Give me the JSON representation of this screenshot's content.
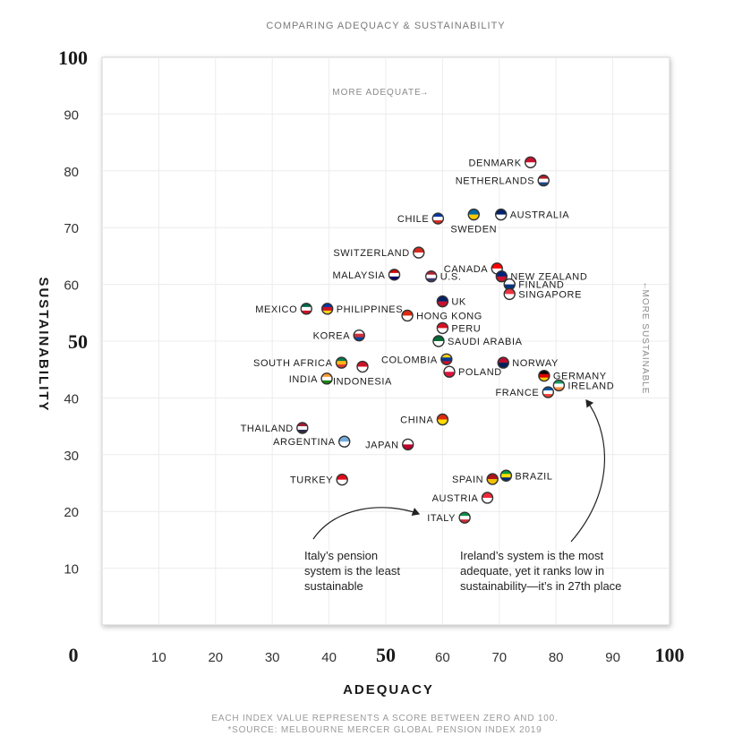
{
  "chart_data": {
    "type": "scatter",
    "title": "COMPARING ADEQUACY & SUSTAINABILITY",
    "xlabel": "ADEQUACY",
    "ylabel": "SUSTAINABILITY",
    "xlim": [
      0,
      100
    ],
    "ylim": [
      0,
      100
    ],
    "x_ticks": [
      "0",
      "10",
      "20",
      "30",
      "40",
      "50",
      "60",
      "70",
      "80",
      "90",
      "100"
    ],
    "y_ticks": [
      "0",
      "10",
      "20",
      "30",
      "40",
      "50",
      "60",
      "70",
      "80",
      "90",
      "100"
    ],
    "grid": true,
    "hint_x": "MORE ADEQUATE",
    "hint_y": "MORE SUSTAINABLE",
    "points": [
      {
        "label": "DENMARK",
        "x": 75.5,
        "y": 81.5,
        "flag": [
          "#c8102e",
          "#ffffff"
        ]
      },
      {
        "label": "NETHERLANDS",
        "x": 77.8,
        "y": 78.3,
        "flag": [
          "#ae1c28",
          "#ffffff",
          "#21468b"
        ]
      },
      {
        "label": "CHILE",
        "x": 59.2,
        "y": 71.6,
        "flag": [
          "#0039a6",
          "#ffffff",
          "#d52b1e"
        ]
      },
      {
        "label": "SWEDEN",
        "x": 65.5,
        "y": 72.3,
        "flag": [
          "#006aa7",
          "#fecc00"
        ]
      },
      {
        "label": "AUSTRALIA",
        "x": 70.3,
        "y": 72.3,
        "flag": [
          "#012169",
          "#ffffff"
        ]
      },
      {
        "label": "SWITZERLAND",
        "x": 55.8,
        "y": 65.6,
        "flag": [
          "#d52b1e",
          "#ffffff"
        ]
      },
      {
        "label": "MALAYSIA",
        "x": 51.5,
        "y": 61.7,
        "flag": [
          "#cc0001",
          "#ffffff",
          "#010066"
        ]
      },
      {
        "label": "U.S.",
        "x": 58.0,
        "y": 61.4,
        "flag": [
          "#b22234",
          "#ffffff",
          "#3c3b6e"
        ]
      },
      {
        "label": "CANADA",
        "x": 69.6,
        "y": 62.8,
        "flag": [
          "#ff0000",
          "#ffffff"
        ]
      },
      {
        "label": "NEW ZEALAND",
        "x": 70.4,
        "y": 61.4,
        "flag": [
          "#00247d",
          "#cc142b"
        ]
      },
      {
        "label": "FINLAND",
        "x": 71.8,
        "y": 60.0,
        "flag": [
          "#ffffff",
          "#003580"
        ]
      },
      {
        "label": "SINGAPORE",
        "x": 71.8,
        "y": 58.3,
        "flag": [
          "#ef3340",
          "#ffffff"
        ]
      },
      {
        "label": "UK",
        "x": 60.0,
        "y": 57.0,
        "flag": [
          "#012169",
          "#c8102e"
        ]
      },
      {
        "label": "MEXICO",
        "x": 36.0,
        "y": 55.7,
        "flag": [
          "#006847",
          "#ffffff",
          "#ce1126"
        ]
      },
      {
        "label": "PHILIPPINES",
        "x": 39.7,
        "y": 55.7,
        "flag": [
          "#0038a8",
          "#ce1126",
          "#fcd116"
        ]
      },
      {
        "label": "HONG KONG",
        "x": 53.8,
        "y": 54.5,
        "flag": [
          "#de2910",
          "#ffffff"
        ]
      },
      {
        "label": "PERU",
        "x": 60.0,
        "y": 52.3,
        "flag": [
          "#d91023",
          "#ffffff"
        ]
      },
      {
        "label": "KOREA",
        "x": 45.3,
        "y": 51.0,
        "flag": [
          "#ffffff",
          "#cd2e3a",
          "#0047a0"
        ]
      },
      {
        "label": "SAUDI ARABIA",
        "x": 59.3,
        "y": 50.0,
        "flag": [
          "#006c35",
          "#ffffff"
        ]
      },
      {
        "label": "COLOMBIA",
        "x": 60.7,
        "y": 46.8,
        "flag": [
          "#fcd116",
          "#003893",
          "#ce1126"
        ]
      },
      {
        "label": "NORWAY",
        "x": 70.7,
        "y": 46.2,
        "flag": [
          "#ba0c2f",
          "#00205b"
        ]
      },
      {
        "label": "SOUTH AFRICA",
        "x": 42.2,
        "y": 46.2,
        "flag": [
          "#007a4d",
          "#ffb612",
          "#de3831"
        ]
      },
      {
        "label": "INDONESIA",
        "x": 45.9,
        "y": 45.5,
        "flag": [
          "#ce1126",
          "#ffffff"
        ]
      },
      {
        "label": "POLAND",
        "x": 61.2,
        "y": 44.6,
        "flag": [
          "#ffffff",
          "#dc143c"
        ]
      },
      {
        "label": "GERMANY",
        "x": 77.9,
        "y": 43.9,
        "flag": [
          "#000000",
          "#dd0000",
          "#ffce00"
        ]
      },
      {
        "label": "INDIA",
        "x": 39.6,
        "y": 43.4,
        "flag": [
          "#ff9933",
          "#ffffff",
          "#138808"
        ]
      },
      {
        "label": "IRELAND",
        "x": 80.5,
        "y": 42.2,
        "flag": [
          "#169b62",
          "#ffffff",
          "#ff883e"
        ]
      },
      {
        "label": "FRANCE",
        "x": 78.6,
        "y": 41.0,
        "flag": [
          "#0055a4",
          "#ffffff",
          "#ef4135"
        ]
      },
      {
        "label": "CHINA",
        "x": 60.0,
        "y": 36.2,
        "flag": [
          "#de2910",
          "#ffde00"
        ]
      },
      {
        "label": "THAILAND",
        "x": 35.3,
        "y": 34.7,
        "flag": [
          "#a51931",
          "#f4f5f8",
          "#2d2a4a"
        ]
      },
      {
        "label": "ARGENTINA",
        "x": 42.7,
        "y": 32.3,
        "flag": [
          "#74acdf",
          "#ffffff"
        ]
      },
      {
        "label": "JAPAN",
        "x": 53.9,
        "y": 31.8,
        "flag": [
          "#ffffff",
          "#bc002d"
        ]
      },
      {
        "label": "BRAZIL",
        "x": 71.2,
        "y": 26.3,
        "flag": [
          "#009c3b",
          "#ffdf00",
          "#002776"
        ]
      },
      {
        "label": "SPAIN",
        "x": 68.8,
        "y": 25.7,
        "flag": [
          "#aa151b",
          "#f1bf00"
        ]
      },
      {
        "label": "TURKEY",
        "x": 42.3,
        "y": 25.6,
        "flag": [
          "#e30a17",
          "#ffffff"
        ]
      },
      {
        "label": "AUSTRIA",
        "x": 67.9,
        "y": 22.4,
        "flag": [
          "#ed2939",
          "#ffffff"
        ]
      },
      {
        "label": "ITALY",
        "x": 63.9,
        "y": 18.9,
        "flag": [
          "#009246",
          "#ffffff",
          "#ce2b37"
        ]
      }
    ],
    "annotations": [
      {
        "lines": [
          "Italy’s pension",
          "system is the least",
          "sustainable"
        ]
      },
      {
        "lines": [
          "Ireland’s system is the most",
          "adequate, yet it ranks low in",
          "sustainability—it’s in 27th place"
        ]
      }
    ],
    "footnote": [
      "EACH INDEX VALUE REPRESENTS A SCORE BETWEEN ZERO AND 100.",
      "*SOURCE: MELBOURNE MERCER GLOBAL PENSION INDEX 2019"
    ]
  }
}
